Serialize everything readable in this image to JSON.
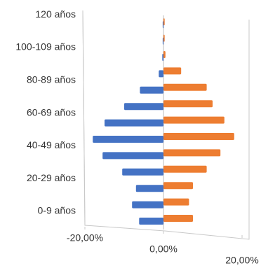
{
  "chart_data": {
    "type": "bar",
    "orientation": "horizontal",
    "categories": [
      "0-9 años",
      null,
      "20-29 años",
      null,
      "40-49 años",
      null,
      "60-69 años",
      null,
      "80-89 años",
      null,
      "100-109 años",
      null,
      "120 años"
    ],
    "series": [
      {
        "color": "#4472c4",
        "values": [
          -6.2,
          -8,
          -7,
          -10.5,
          -15.5,
          -18,
          -15,
          -10,
          -6,
          -1.2,
          -0.3,
          -0.2,
          -0.2
        ]
      },
      {
        "color": "#ed7d31",
        "values": [
          7.5,
          6.5,
          7.5,
          11,
          14.5,
          18,
          15.5,
          12.5,
          11,
          4.5,
          0.5,
          0.3,
          0.3
        ]
      }
    ],
    "xlim": [
      -20,
      20
    ],
    "xticks": [
      {
        "value": -20,
        "label": "-20,00%"
      },
      {
        "value": 0,
        "label": "0,00%"
      },
      {
        "value": 20,
        "label": "20,00%"
      }
    ]
  }
}
